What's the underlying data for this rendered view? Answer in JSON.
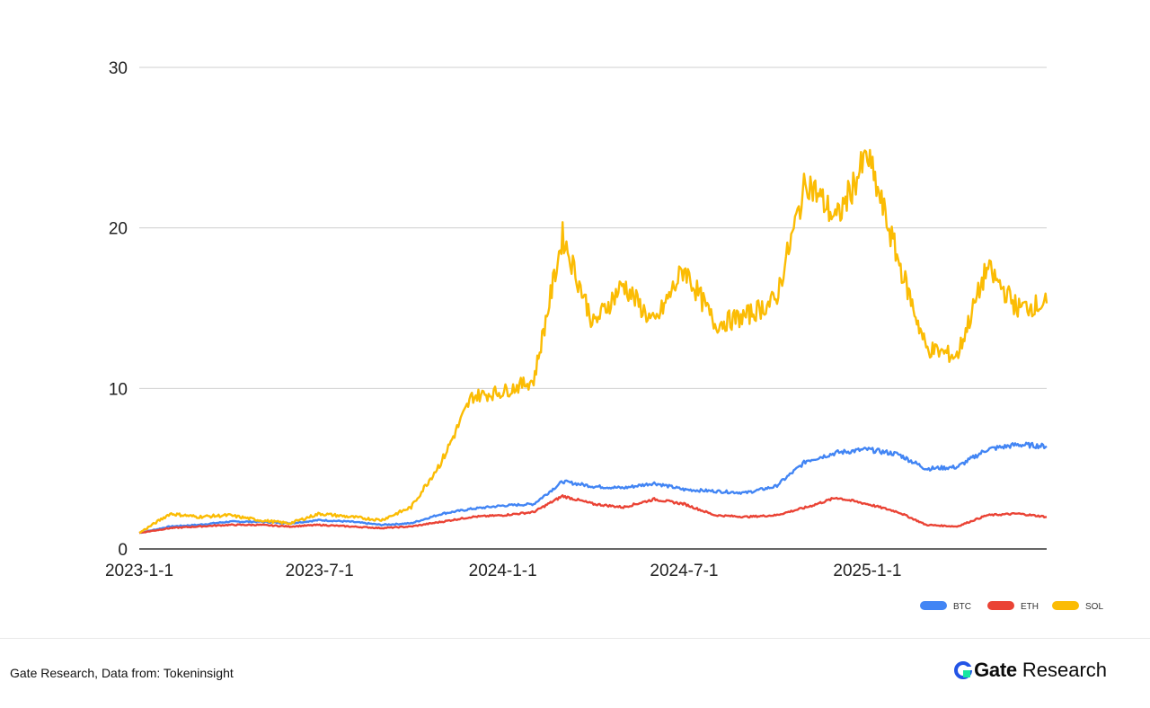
{
  "chart_data": {
    "type": "line",
    "title": "",
    "xlabel": "",
    "ylabel": "",
    "x_ticks": [
      "2023-1-1",
      "2023-7-1",
      "2024-1-1",
      "2024-7-1",
      "2025-1-1"
    ],
    "x_range": [
      "2023-01-01",
      "2025-06-30"
    ],
    "ylim": [
      0,
      30
    ],
    "y_ticks": [
      0,
      10,
      20,
      30
    ],
    "grid": "horizontal",
    "legend_position": "bottom-right",
    "x": [
      "2023-01-01",
      "2023-02-01",
      "2023-03-01",
      "2023-04-01",
      "2023-05-01",
      "2023-06-01",
      "2023-07-01",
      "2023-08-01",
      "2023-09-01",
      "2023-10-01",
      "2023-11-01",
      "2023-12-01",
      "2024-01-01",
      "2024-02-01",
      "2024-03-01",
      "2024-04-01",
      "2024-05-01",
      "2024-06-01",
      "2024-07-01",
      "2024-08-01",
      "2024-09-01",
      "2024-10-01",
      "2024-11-01",
      "2024-12-01",
      "2025-01-01",
      "2025-02-01",
      "2025-03-01",
      "2025-04-01",
      "2025-05-01",
      "2025-06-01",
      "2025-06-30"
    ],
    "series": [
      {
        "name": "BTC",
        "color": "#4285F4",
        "values": [
          1.0,
          1.4,
          1.5,
          1.7,
          1.7,
          1.6,
          1.8,
          1.7,
          1.5,
          1.6,
          2.2,
          2.5,
          2.7,
          2.8,
          4.2,
          3.9,
          3.8,
          4.1,
          3.7,
          3.6,
          3.5,
          3.9,
          5.5,
          6.0,
          6.2,
          5.9,
          5.0,
          5.1,
          6.2,
          6.5,
          6.4
        ]
      },
      {
        "name": "ETH",
        "color": "#EA4335",
        "values": [
          1.0,
          1.3,
          1.4,
          1.5,
          1.5,
          1.4,
          1.5,
          1.4,
          1.3,
          1.4,
          1.7,
          2.0,
          2.1,
          2.3,
          3.3,
          2.8,
          2.6,
          3.1,
          2.8,
          2.1,
          2.0,
          2.1,
          2.6,
          3.2,
          2.8,
          2.3,
          1.5,
          1.4,
          2.1,
          2.2,
          2.0
        ]
      },
      {
        "name": "SOL",
        "color": "#FBBC04",
        "values": [
          1.0,
          2.2,
          2.0,
          2.1,
          1.8,
          1.6,
          2.2,
          2.0,
          1.8,
          2.6,
          5.5,
          9.5,
          9.8,
          10.5,
          19.5,
          14.0,
          16.5,
          14.0,
          17.5,
          14.0,
          14.5,
          15.5,
          23.0,
          20.5,
          24.5,
          18.0,
          12.5,
          12.0,
          17.5,
          15.0,
          15.3
        ]
      }
    ]
  }
}
